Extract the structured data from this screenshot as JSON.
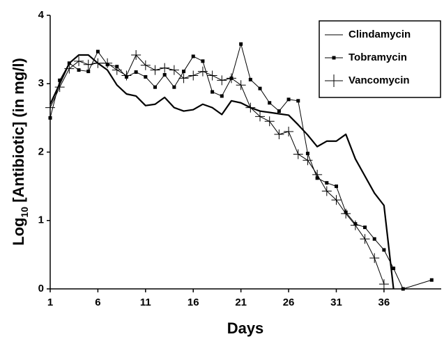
{
  "chart_data": {
    "type": "line",
    "x_label": "Days",
    "y_label": [
      "Log",
      "10",
      "[Antibiotic]  (in mg/l)"
    ],
    "xlim": [
      1,
      42
    ],
    "xticks": [
      1,
      6,
      11,
      16,
      21,
      26,
      31,
      36
    ],
    "ylim": [
      0,
      4
    ],
    "yticks": [
      0,
      1,
      2,
      3,
      4
    ],
    "grid": false,
    "legend": "upper right",
    "series": [
      {
        "name": "Clindamycin",
        "color": "#000000",
        "marker": "none",
        "line_width": 2.2,
        "x": [
          1,
          2,
          3,
          4,
          5,
          6,
          7,
          8,
          9,
          10,
          11,
          12,
          13,
          14,
          15,
          16,
          17,
          18,
          19,
          20,
          21,
          22,
          23,
          24,
          25,
          26,
          27,
          28,
          29,
          30,
          31,
          32,
          33,
          34,
          35,
          36,
          37
        ],
        "values": [
          2.7,
          3.0,
          3.3,
          3.42,
          3.42,
          3.3,
          3.2,
          2.98,
          2.85,
          2.82,
          2.68,
          2.7,
          2.8,
          2.65,
          2.6,
          2.62,
          2.7,
          2.65,
          2.55,
          2.75,
          2.72,
          2.65,
          2.6,
          2.58,
          2.56,
          2.54,
          2.4,
          2.25,
          2.08,
          2.16,
          2.16,
          2.26,
          1.9,
          1.65,
          1.4,
          1.22,
          0
        ]
      },
      {
        "name": "Tobramycin",
        "color": "#000000",
        "marker": "square",
        "line_width": 1,
        "x": [
          1,
          2,
          3,
          4,
          5,
          6,
          7,
          8,
          9,
          10,
          11,
          12,
          13,
          14,
          15,
          16,
          17,
          18,
          19,
          20,
          21,
          22,
          23,
          24,
          25,
          26,
          27,
          28,
          29,
          30,
          31,
          32,
          33,
          34,
          35,
          36,
          37,
          38,
          41
        ],
        "values": [
          2.5,
          3.05,
          3.3,
          3.2,
          3.18,
          3.47,
          3.28,
          3.25,
          3.1,
          3.17,
          3.1,
          2.95,
          3.13,
          2.95,
          3.18,
          3.4,
          3.33,
          2.88,
          2.82,
          3.08,
          3.58,
          3.06,
          2.93,
          2.72,
          2.6,
          2.77,
          2.75,
          1.98,
          1.62,
          1.55,
          1.5,
          1.12,
          0.95,
          0.9,
          0.73,
          0.57,
          0.3,
          0,
          0.13
        ]
      },
      {
        "name": "Vancomycin",
        "color": "#000000",
        "marker": "plus",
        "line_width": 1,
        "x": [
          1,
          2,
          3,
          4,
          5,
          6,
          7,
          8,
          9,
          10,
          11,
          12,
          13,
          14,
          15,
          16,
          17,
          18,
          19,
          20,
          21,
          22,
          23,
          24,
          25,
          26,
          27,
          28,
          29,
          30,
          31,
          32,
          33,
          34,
          35,
          36
        ],
        "values": [
          2.65,
          2.95,
          3.22,
          3.33,
          3.28,
          3.3,
          3.3,
          3.2,
          3.12,
          3.42,
          3.27,
          3.2,
          3.23,
          3.2,
          3.08,
          3.12,
          3.18,
          3.12,
          3.05,
          3.08,
          2.98,
          2.65,
          2.52,
          2.45,
          2.26,
          2.3,
          1.97,
          1.88,
          1.67,
          1.43,
          1.3,
          1.1,
          0.93,
          0.73,
          0.45,
          0.07
        ]
      }
    ]
  }
}
